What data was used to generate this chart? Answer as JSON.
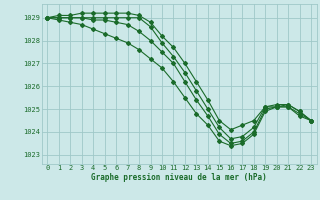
{
  "background_color": "#cce8e8",
  "plot_bg_color": "#cce8e8",
  "grid_color": "#9fc8c8",
  "line_color": "#1a6b2a",
  "xlabel": "Graphe pression niveau de la mer (hPa)",
  "ylim": [
    1022.6,
    1029.6
  ],
  "xlim": [
    -0.5,
    23.5
  ],
  "yticks": [
    1023,
    1024,
    1025,
    1026,
    1027,
    1028,
    1029
  ],
  "xticks": [
    0,
    1,
    2,
    3,
    4,
    5,
    6,
    7,
    8,
    9,
    10,
    11,
    12,
    13,
    14,
    15,
    16,
    17,
    18,
    19,
    20,
    21,
    22,
    23
  ],
  "series": [
    [
      1029.0,
      1029.1,
      1029.1,
      1029.2,
      1029.2,
      1029.2,
      1029.2,
      1029.2,
      1029.1,
      1028.8,
      1028.2,
      1027.7,
      1027.0,
      1026.2,
      1025.4,
      1024.5,
      1024.1,
      1024.3,
      1024.5,
      1025.1,
      1025.2,
      1025.2,
      1024.9,
      1024.5
    ],
    [
      1029.0,
      1029.0,
      1029.0,
      1029.0,
      1029.0,
      1029.0,
      1029.0,
      1029.0,
      1029.0,
      1028.6,
      1027.9,
      1027.3,
      1026.6,
      1025.8,
      1025.0,
      1024.2,
      1023.7,
      1023.8,
      1024.2,
      1025.1,
      1025.1,
      1025.2,
      1024.9,
      1024.5
    ],
    [
      1029.0,
      1029.0,
      1029.0,
      1029.0,
      1028.9,
      1028.9,
      1028.8,
      1028.7,
      1028.4,
      1028.0,
      1027.5,
      1027.0,
      1026.2,
      1025.4,
      1024.7,
      1023.9,
      1023.5,
      1023.6,
      1024.0,
      1025.0,
      1025.1,
      1025.1,
      1024.8,
      1024.5
    ],
    [
      1029.0,
      1028.9,
      1028.8,
      1028.7,
      1028.5,
      1028.3,
      1028.1,
      1027.9,
      1027.6,
      1027.2,
      1026.8,
      1026.2,
      1025.5,
      1024.8,
      1024.3,
      1023.6,
      1023.4,
      1023.5,
      1023.9,
      1024.9,
      1025.1,
      1025.1,
      1024.7,
      1024.5
    ]
  ]
}
